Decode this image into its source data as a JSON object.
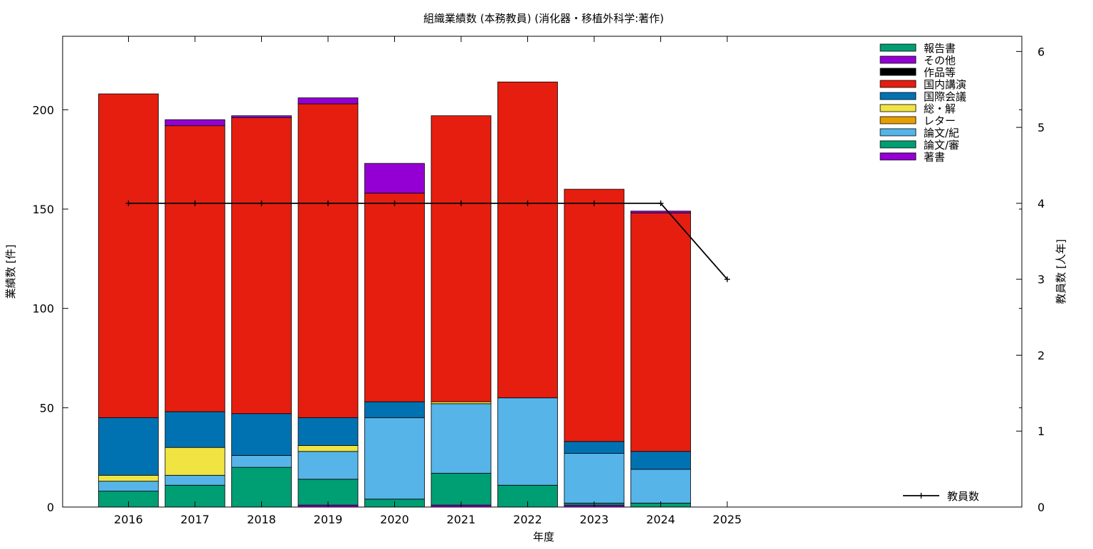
{
  "chart_data": {
    "type": "bar",
    "title": "組織業績数 (本務教員) (消化器・移植外科学:著作)",
    "xlabel": "年度",
    "ylabel": "業績数 [件]",
    "y2label": "教員数 [人年]",
    "stacked": true,
    "categories": [
      "2016",
      "2017",
      "2018",
      "2019",
      "2020",
      "2021",
      "2022",
      "2023",
      "2024",
      "2025"
    ],
    "ylim": [
      0,
      237
    ],
    "y2lim": [
      0,
      6.2
    ],
    "yticks": [
      0,
      50,
      100,
      150,
      200
    ],
    "y2ticks": [
      0,
      1,
      2,
      3,
      4,
      5,
      6
    ],
    "grid": false,
    "legend_position": "top-right",
    "series": [
      {
        "name": "著書",
        "color": "#9400D3",
        "values": [
          0,
          0,
          0,
          1,
          0,
          1,
          0,
          1,
          0,
          0
        ]
      },
      {
        "name": "論文/審",
        "color": "#009E73",
        "values": [
          8,
          11,
          20,
          13,
          4,
          16,
          11,
          1,
          2,
          0
        ]
      },
      {
        "name": "論文/紀",
        "color": "#56B4E9",
        "values": [
          5,
          5,
          6,
          14,
          41,
          35,
          44,
          25,
          17,
          0
        ]
      },
      {
        "name": "レター",
        "color": "#E69F00",
        "values": [
          0,
          0,
          0,
          0,
          0,
          0,
          0,
          0,
          0,
          0
        ]
      },
      {
        "name": "総・解",
        "color": "#F0E442",
        "values": [
          3,
          14,
          0,
          3,
          0,
          1,
          0,
          0,
          0,
          0
        ]
      },
      {
        "name": "国際会議",
        "color": "#0072B2",
        "values": [
          29,
          18,
          21,
          14,
          8,
          0,
          0,
          6,
          9,
          0
        ]
      },
      {
        "name": "国内講演",
        "color": "#E51E10",
        "values": [
          163,
          144,
          149,
          158,
          105,
          144,
          159,
          127,
          120,
          0
        ]
      },
      {
        "name": "作品等",
        "color": "#000000",
        "values": [
          0,
          0,
          0,
          0,
          0,
          0,
          0,
          0,
          0,
          0
        ]
      },
      {
        "name": "その他",
        "color": "#9400D3",
        "values": [
          0,
          3,
          1,
          3,
          15,
          0,
          0,
          0,
          1,
          0
        ]
      },
      {
        "name": "報告書",
        "color": "#009E73",
        "values": [
          0,
          0,
          0,
          0,
          0,
          0,
          0,
          0,
          0,
          0
        ]
      }
    ],
    "line_series": {
      "name": "教員数",
      "color": "#000000",
      "axis": "y2",
      "values": [
        4,
        4,
        4,
        4,
        4,
        4,
        4,
        4,
        4,
        3
      ]
    }
  }
}
